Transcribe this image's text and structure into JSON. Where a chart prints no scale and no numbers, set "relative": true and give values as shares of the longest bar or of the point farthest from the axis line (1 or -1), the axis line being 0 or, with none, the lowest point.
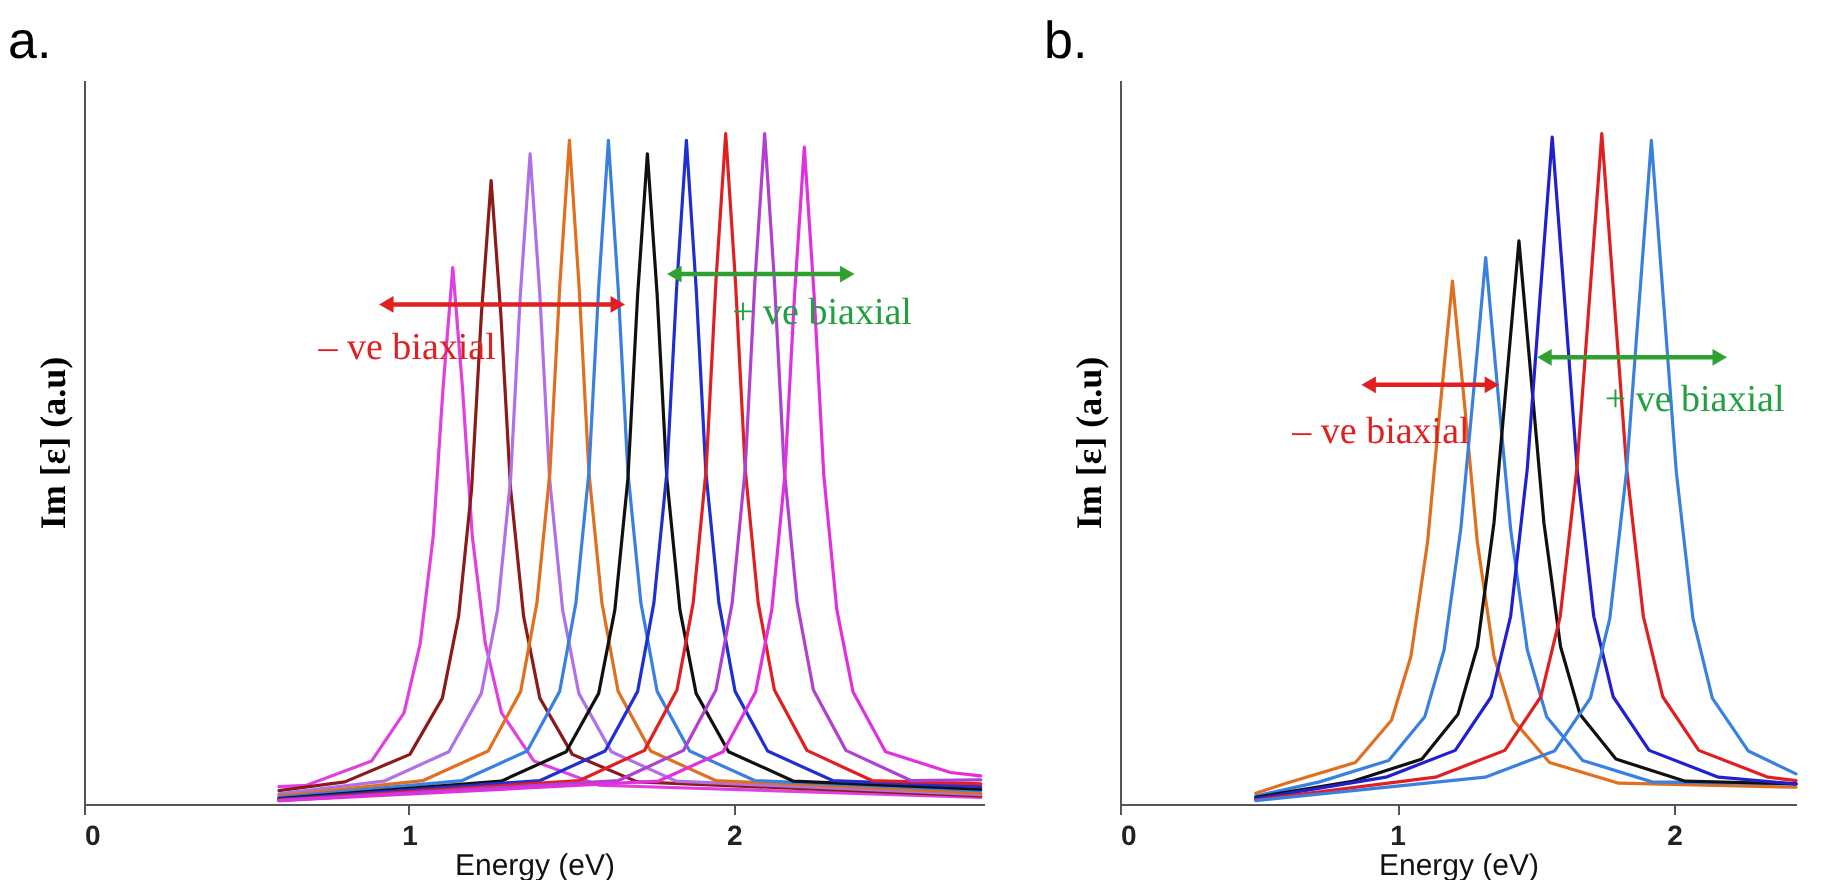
{
  "chart_data": [
    {
      "type": "line",
      "title": "a.",
      "xlabel": "Energy (eV)",
      "ylabel": "Im [ε] (a.u)",
      "relative": true,
      "xlim": [
        0,
        2.77
      ],
      "xticks": [
        0,
        1,
        2
      ],
      "annotations": [
        "– ve biaxial",
        "+ ve biaxial"
      ],
      "series": [
        {
          "color": "#e040e0",
          "x": [
            0.6,
            0.685,
            0.885,
            0.985,
            1.035,
            1.075,
            1.105,
            1.135,
            1.165,
            1.195,
            1.235,
            1.285,
            1.385,
            1.585,
            2.76
          ],
          "values": [
            0.026,
            0.028,
            0.064,
            0.136,
            0.24,
            0.4,
            0.62,
            0.8,
            0.62,
            0.4,
            0.24,
            0.136,
            0.064,
            0.028,
            0.01
          ]
        },
        {
          "color": "#8b1a1a",
          "x": [
            0.6,
            0.803,
            1.003,
            1.103,
            1.153,
            1.193,
            1.223,
            1.253,
            1.283,
            1.313,
            1.353,
            1.403,
            1.503,
            1.703,
            2.76
          ],
          "values": [
            0.02,
            0.033,
            0.074,
            0.158,
            0.28,
            0.47,
            0.73,
            0.93,
            0.73,
            0.47,
            0.28,
            0.158,
            0.074,
            0.033,
            0.012
          ]
        },
        {
          "color": "#b070e8",
          "x": [
            0.6,
            0.923,
            1.123,
            1.223,
            1.273,
            1.313,
            1.343,
            1.373,
            1.403,
            1.433,
            1.473,
            1.523,
            1.623,
            1.823,
            2.76
          ],
          "values": [
            0.015,
            0.034,
            0.078,
            0.165,
            0.29,
            0.485,
            0.76,
            0.97,
            0.76,
            0.485,
            0.29,
            0.165,
            0.078,
            0.034,
            0.014
          ]
        },
        {
          "color": "#e07020",
          "x": [
            0.6,
            1.044,
            1.244,
            1.344,
            1.394,
            1.434,
            1.464,
            1.494,
            1.524,
            1.554,
            1.594,
            1.644,
            1.744,
            1.944,
            2.76
          ],
          "values": [
            0.012,
            0.035,
            0.079,
            0.168,
            0.3,
            0.495,
            0.77,
            0.99,
            0.77,
            0.495,
            0.3,
            0.168,
            0.079,
            0.035,
            0.016
          ]
        },
        {
          "color": "#3a80e0",
          "x": [
            0.6,
            1.164,
            1.364,
            1.464,
            1.514,
            1.554,
            1.584,
            1.614,
            1.644,
            1.674,
            1.714,
            1.764,
            1.864,
            2.064,
            2.76
          ],
          "values": [
            0.01,
            0.035,
            0.079,
            0.168,
            0.3,
            0.495,
            0.77,
            0.99,
            0.77,
            0.495,
            0.3,
            0.168,
            0.079,
            0.035,
            0.02
          ]
        },
        {
          "color": "#101010",
          "x": [
            0.6,
            1.284,
            1.484,
            1.584,
            1.634,
            1.674,
            1.704,
            1.734,
            1.764,
            1.794,
            1.834,
            1.884,
            1.984,
            2.184,
            2.76
          ],
          "values": [
            0.008,
            0.034,
            0.078,
            0.165,
            0.29,
            0.485,
            0.76,
            0.97,
            0.76,
            0.485,
            0.29,
            0.165,
            0.078,
            0.034,
            0.022
          ]
        },
        {
          "color": "#2030d0",
          "x": [
            0.6,
            1.404,
            1.604,
            1.704,
            1.754,
            1.794,
            1.824,
            1.854,
            1.884,
            1.914,
            1.954,
            2.004,
            2.104,
            2.304,
            2.76
          ],
          "values": [
            0.007,
            0.035,
            0.079,
            0.168,
            0.3,
            0.495,
            0.77,
            0.99,
            0.77,
            0.495,
            0.3,
            0.168,
            0.079,
            0.035,
            0.026
          ]
        },
        {
          "color": "#e02020",
          "x": [
            0.6,
            1.525,
            1.725,
            1.825,
            1.875,
            1.915,
            1.945,
            1.975,
            2.005,
            2.035,
            2.075,
            2.125,
            2.225,
            2.425,
            2.76
          ],
          "values": [
            0.006,
            0.035,
            0.08,
            0.17,
            0.3,
            0.5,
            0.78,
            1.0,
            0.78,
            0.5,
            0.3,
            0.17,
            0.08,
            0.035,
            0.03
          ]
        },
        {
          "color": "#b040d0",
          "x": [
            0.6,
            1.645,
            1.845,
            1.945,
            1.995,
            2.035,
            2.065,
            2.095,
            2.125,
            2.155,
            2.195,
            2.245,
            2.345,
            2.545,
            2.76
          ],
          "values": [
            0.005,
            0.035,
            0.08,
            0.17,
            0.3,
            0.5,
            0.78,
            1.0,
            0.78,
            0.5,
            0.3,
            0.17,
            0.08,
            0.035,
            0.036
          ]
        },
        {
          "color": "#e030e0",
          "x": [
            0.6,
            1.767,
            1.967,
            2.067,
            2.117,
            2.157,
            2.187,
            2.217,
            2.247,
            2.277,
            2.317,
            2.367,
            2.467,
            2.667,
            2.76
          ],
          "values": [
            0.005,
            0.034,
            0.078,
            0.167,
            0.29,
            0.49,
            0.76,
            0.98,
            0.76,
            0.49,
            0.29,
            0.167,
            0.078,
            0.047,
            0.042
          ]
        }
      ]
    },
    {
      "type": "line",
      "title": "b.",
      "xlabel": "Energy (eV)",
      "ylabel": "Im [ε] (a.u)",
      "relative": true,
      "xlim": [
        0,
        2.44
      ],
      "xticks": [
        0,
        1,
        2
      ],
      "annotations": [
        "– ve biaxial",
        "+ ve biaxial"
      ],
      "series": [
        {
          "color": "#e07020",
          "x": [
            0.49,
            0.6,
            0.85,
            0.98,
            1.05,
            1.11,
            1.155,
            1.2,
            1.245,
            1.29,
            1.35,
            1.42,
            1.55,
            1.8,
            2.44
          ],
          "values": [
            0.016,
            0.031,
            0.062,
            0.125,
            0.22,
            0.39,
            0.59,
            0.78,
            0.59,
            0.39,
            0.22,
            0.125,
            0.062,
            0.031,
            0.025
          ]
        },
        {
          "color": "#3a80e0",
          "x": [
            0.49,
            0.72,
            0.97,
            1.1,
            1.17,
            1.23,
            1.275,
            1.32,
            1.365,
            1.41,
            1.47,
            1.54,
            1.67,
            1.92,
            2.44
          ],
          "values": [
            0.012,
            0.033,
            0.065,
            0.13,
            0.23,
            0.41,
            0.61,
            0.815,
            0.61,
            0.41,
            0.23,
            0.13,
            0.065,
            0.033,
            0.03
          ]
        },
        {
          "color": "#101010",
          "x": [
            0.49,
            0.84,
            1.09,
            1.22,
            1.29,
            1.35,
            1.395,
            1.44,
            1.485,
            1.53,
            1.59,
            1.66,
            1.79,
            2.04,
            2.44
          ],
          "values": [
            0.01,
            0.034,
            0.067,
            0.134,
            0.235,
            0.42,
            0.63,
            0.84,
            0.63,
            0.42,
            0.235,
            0.134,
            0.067,
            0.034,
            0.03
          ]
        },
        {
          "color": "#2020d0",
          "x": [
            0.49,
            0.96,
            1.21,
            1.34,
            1.41,
            1.47,
            1.515,
            1.56,
            1.605,
            1.65,
            1.71,
            1.78,
            1.91,
            2.16,
            2.44
          ],
          "values": [
            0.008,
            0.04,
            0.08,
            0.16,
            0.28,
            0.5,
            0.75,
            0.995,
            0.75,
            0.5,
            0.28,
            0.16,
            0.08,
            0.04,
            0.03
          ]
        },
        {
          "color": "#e02020",
          "x": [
            0.49,
            1.139,
            1.389,
            1.519,
            1.589,
            1.649,
            1.694,
            1.739,
            1.784,
            1.829,
            1.889,
            1.959,
            2.089,
            2.339,
            2.44
          ],
          "values": [
            0.006,
            0.04,
            0.08,
            0.16,
            0.28,
            0.5,
            0.75,
            1.0,
            0.75,
            0.5,
            0.28,
            0.16,
            0.08,
            0.04,
            0.035
          ]
        },
        {
          "color": "#3a80e0",
          "x": [
            0.49,
            1.318,
            1.568,
            1.698,
            1.768,
            1.828,
            1.873,
            1.918,
            1.963,
            2.008,
            2.068,
            2.138,
            2.268,
            2.44
          ],
          "values": [
            0.005,
            0.04,
            0.079,
            0.158,
            0.277,
            0.495,
            0.743,
            0.99,
            0.743,
            0.495,
            0.277,
            0.158,
            0.079,
            0.045
          ]
        }
      ]
    }
  ]
}
